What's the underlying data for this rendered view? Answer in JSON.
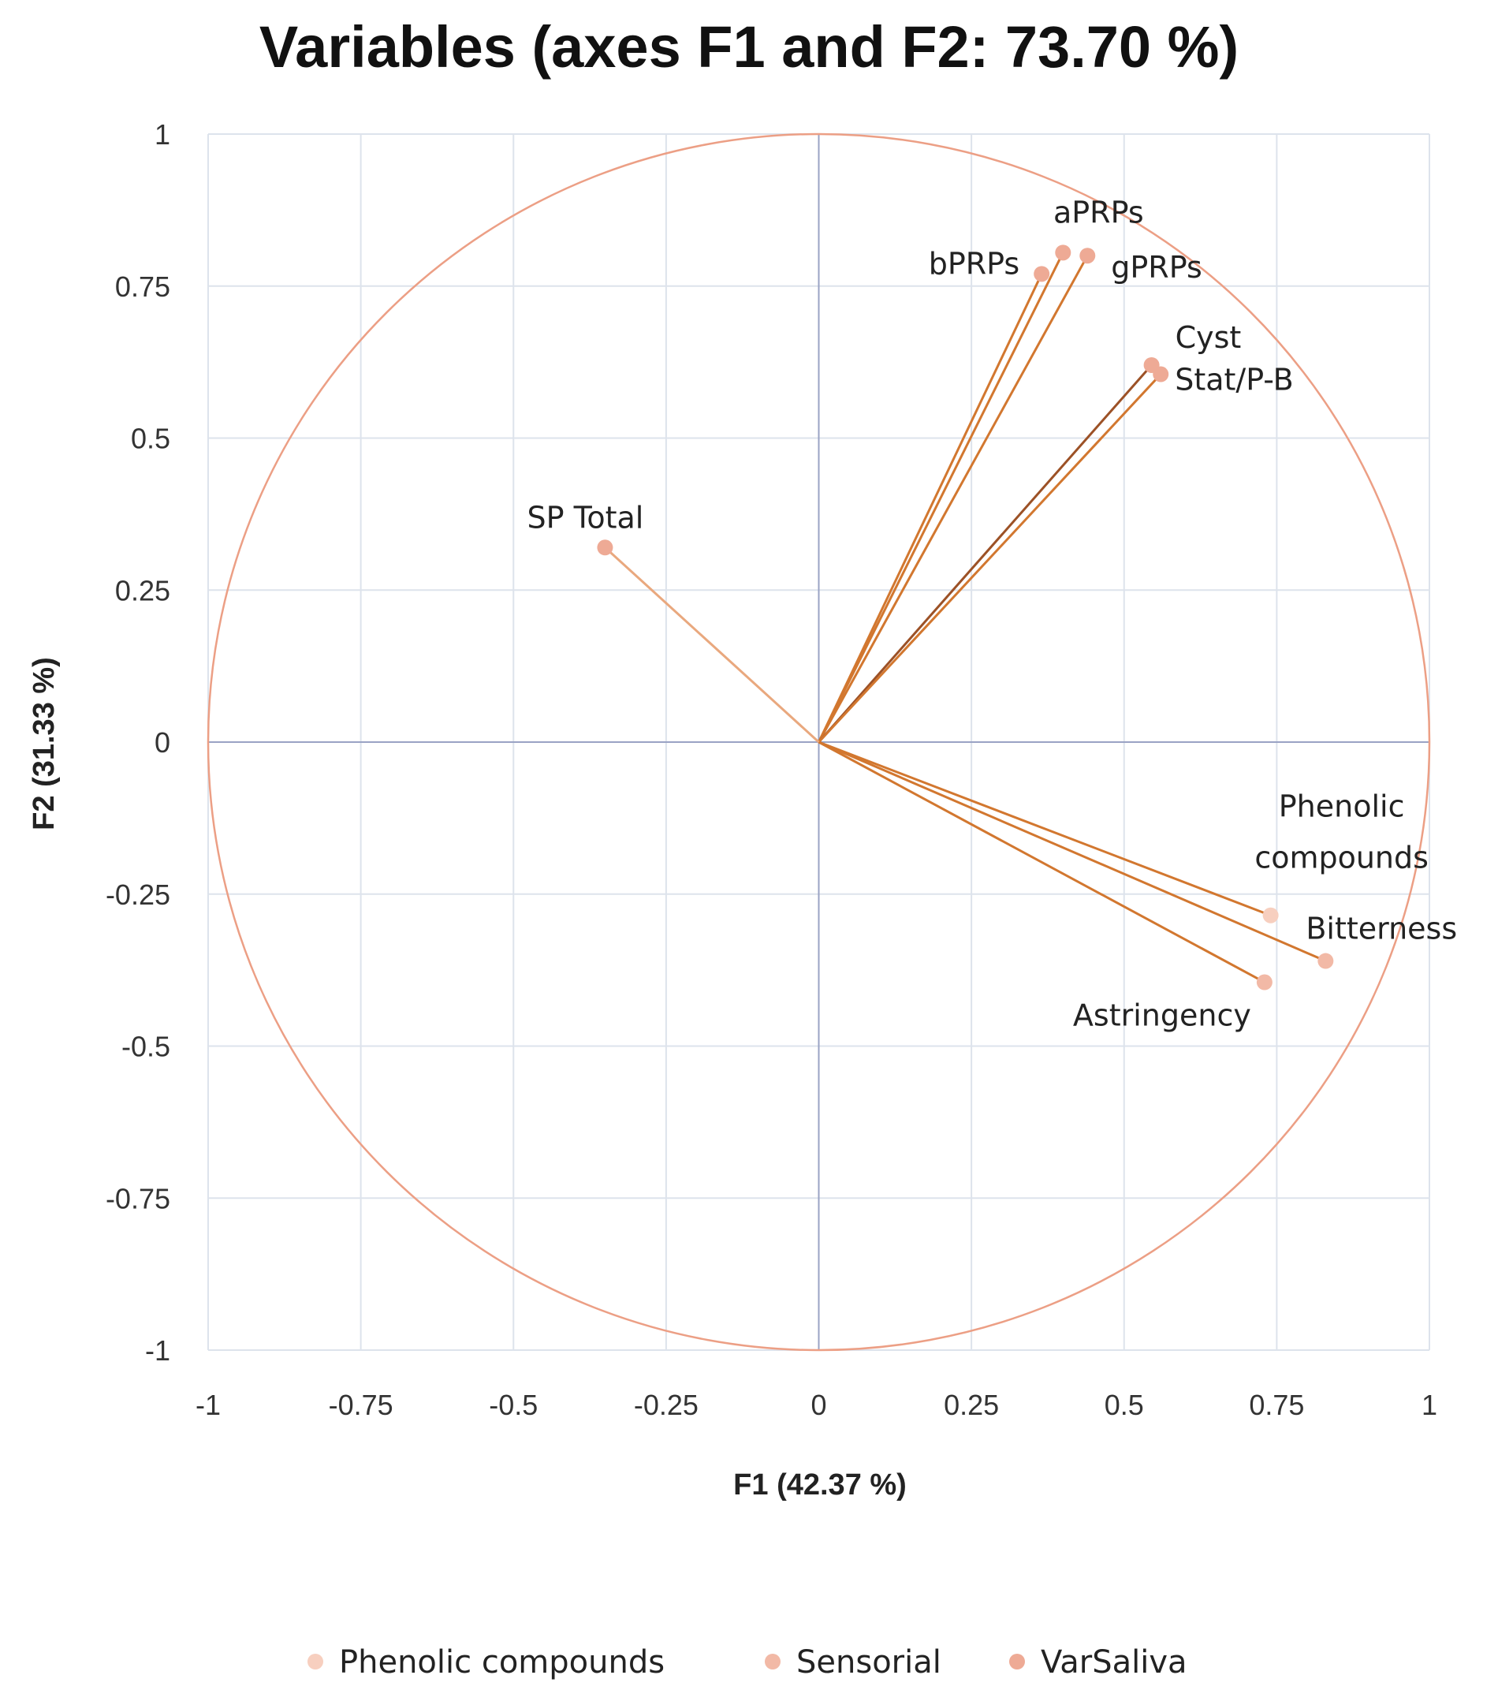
{
  "chart_data": {
    "type": "scatter",
    "title": "Variables (axes F1 and F2: 73.70 %)",
    "xlabel": "F1 (42.37 %)",
    "ylabel": "F2 (31.33 %)",
    "xlim": [
      -1,
      1
    ],
    "ylim": [
      -1,
      1
    ],
    "xticks": [
      -1,
      -0.75,
      -0.5,
      -0.25,
      0,
      0.25,
      0.5,
      0.75,
      1
    ],
    "yticks": [
      -1,
      -0.75,
      -0.5,
      -0.25,
      0,
      0.25,
      0.5,
      0.75,
      1
    ],
    "xtick_labels": [
      "-1",
      "-0.75",
      "-0.5",
      "-0.25",
      "0",
      "0.25",
      "0.5",
      "0.75",
      "1"
    ],
    "ytick_labels": [
      "-1",
      "-0.75",
      "-0.5",
      "-0.25",
      "0",
      "0.25",
      "0.5",
      "0.75",
      "1"
    ],
    "grid": true,
    "correlation_circle": true,
    "legend_position": "bottom",
    "series": [
      {
        "name": "Phenolic compounds",
        "color": "#f7cfbf",
        "points": [
          {
            "label": "Phenolic compounds",
            "x": 0.74,
            "y": -0.285
          }
        ]
      },
      {
        "name": "Sensorial",
        "color": "#f2b9a6",
        "points": [
          {
            "label": "Bitterness",
            "x": 0.83,
            "y": -0.36
          },
          {
            "label": "Astringency",
            "x": 0.73,
            "y": -0.395
          }
        ]
      },
      {
        "name": "VarSaliva",
        "color": "#eeaa95",
        "points": [
          {
            "label": "aPRPs",
            "x": 0.4,
            "y": 0.805
          },
          {
            "label": "bPRPs",
            "x": 0.365,
            "y": 0.77
          },
          {
            "label": "gPRPs",
            "x": 0.44,
            "y": 0.8
          },
          {
            "label": "Cyst",
            "x": 0.545,
            "y": 0.62
          },
          {
            "label": "Stat/P-B",
            "x": 0.56,
            "y": 0.605
          },
          {
            "label": "SP Total",
            "x": -0.35,
            "y": 0.32
          }
        ]
      }
    ],
    "colors": {
      "circle": "#ec9f85",
      "grid": "#dde3ec",
      "zero_axis": "#9aa3c4",
      "vector": "#d2772f",
      "vector_dark": "#9c5126",
      "vector_light": "#e9a87e"
    }
  }
}
